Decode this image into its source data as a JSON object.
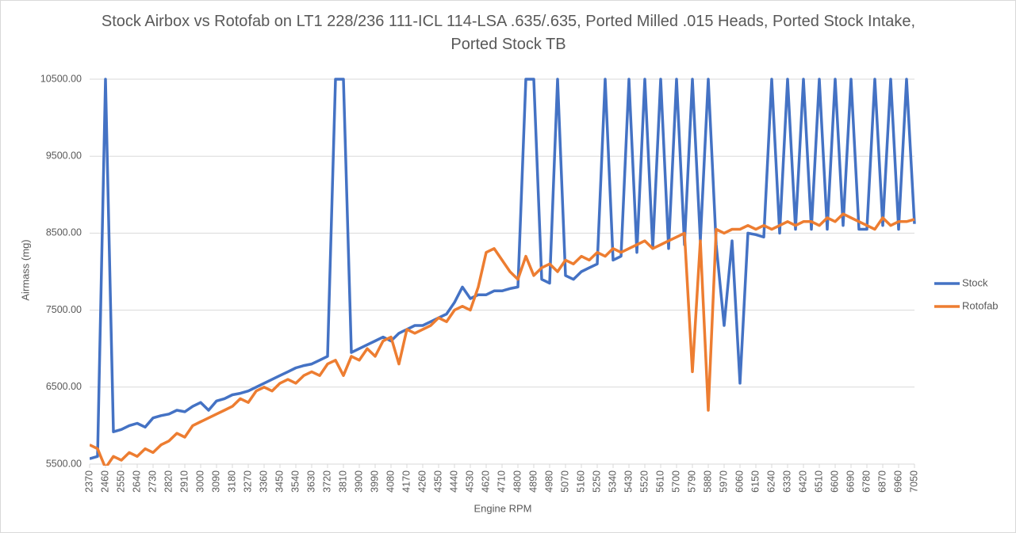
{
  "chart_data": {
    "type": "line",
    "title": "Stock Airbox vs Rotofab on LT1 228/236 111-ICL 114-LSA .635/.635, Ported Milled .015 Heads, Ported Stock Intake, Ported Stock TB",
    "x_label": "Engine RPM",
    "y_label": "Airmass (mg)",
    "x": [
      2370,
      2415,
      2460,
      2505,
      2550,
      2595,
      2640,
      2685,
      2730,
      2775,
      2820,
      2865,
      2910,
      2955,
      3000,
      3045,
      3090,
      3135,
      3180,
      3225,
      3270,
      3315,
      3360,
      3405,
      3450,
      3495,
      3540,
      3585,
      3630,
      3675,
      3720,
      3765,
      3810,
      3855,
      3900,
      3945,
      3990,
      4035,
      4080,
      4125,
      4170,
      4215,
      4260,
      4305,
      4350,
      4395,
      4440,
      4485,
      4530,
      4575,
      4620,
      4665,
      4710,
      4755,
      4800,
      4845,
      4890,
      4935,
      4980,
      5025,
      5070,
      5115,
      5160,
      5205,
      5250,
      5295,
      5340,
      5385,
      5430,
      5475,
      5520,
      5565,
      5610,
      5655,
      5700,
      5745,
      5790,
      5835,
      5880,
      5925,
      5970,
      6015,
      6060,
      6105,
      6150,
      6195,
      6240,
      6285,
      6330,
      6375,
      6420,
      6465,
      6510,
      6555,
      6600,
      6645,
      6690,
      6735,
      6780,
      6825,
      6870,
      6915,
      6960,
      7005,
      7050
    ],
    "series": [
      {
        "name": "Stock",
        "color": "#4472c4",
        "values": [
          5570,
          5600,
          10500,
          5920,
          5950,
          6000,
          6030,
          5980,
          6100,
          6130,
          6150,
          6200,
          6180,
          6250,
          6300,
          6200,
          6320,
          6350,
          6400,
          6420,
          6450,
          6500,
          6550,
          6600,
          6650,
          6700,
          6750,
          6780,
          6800,
          6850,
          6900,
          10500,
          10500,
          6950,
          7000,
          7050,
          7100,
          7150,
          7100,
          7200,
          7250,
          7300,
          7300,
          7350,
          7400,
          7450,
          7600,
          7800,
          7650,
          7700,
          7700,
          7750,
          7750,
          7780,
          7800,
          10500,
          10500,
          7900,
          7850,
          10500,
          7950,
          7900,
          8000,
          8050,
          8100,
          10500,
          8150,
          8200,
          10500,
          8250,
          10500,
          8300,
          10500,
          8300,
          10500,
          8350,
          10500,
          8400,
          10500,
          8350,
          7300,
          8400,
          6550,
          8500,
          8480,
          8450,
          10500,
          8500,
          10500,
          8550,
          10500,
          8550,
          10500,
          8550,
          10500,
          8600,
          10500,
          8550,
          8550,
          10500,
          8600,
          10500,
          8550,
          10500,
          8620
        ]
      },
      {
        "name": "Rotofab",
        "color": "#ed7d31",
        "values": [
          5750,
          5700,
          5450,
          5600,
          5550,
          5650,
          5600,
          5700,
          5650,
          5750,
          5800,
          5900,
          5850,
          6000,
          6050,
          6100,
          6150,
          6200,
          6250,
          6350,
          6300,
          6450,
          6500,
          6450,
          6550,
          6600,
          6550,
          6650,
          6700,
          6650,
          6800,
          6850,
          6650,
          6900,
          6850,
          7000,
          6900,
          7100,
          7150,
          6800,
          7250,
          7200,
          7250,
          7300,
          7400,
          7350,
          7500,
          7550,
          7500,
          7800,
          8250,
          8300,
          8150,
          8000,
          7900,
          8200,
          7950,
          8050,
          8100,
          8000,
          8150,
          8100,
          8200,
          8150,
          8250,
          8200,
          8300,
          8250,
          8300,
          8350,
          8400,
          8300,
          8350,
          8400,
          8450,
          8500,
          6700,
          8400,
          6200,
          8550,
          8500,
          8550,
          8550,
          8600,
          8550,
          8600,
          8550,
          8600,
          8650,
          8600,
          8650,
          8650,
          8600,
          8700,
          8650,
          8750,
          8700,
          8650,
          8600,
          8550,
          8700,
          8600,
          8650,
          8650,
          8680
        ]
      }
    ],
    "xlim": [
      2370,
      7050
    ],
    "xticks": [
      2370,
      2460,
      2550,
      2640,
      2730,
      2820,
      2910,
      3000,
      3090,
      3180,
      3270,
      3360,
      3450,
      3540,
      3630,
      3720,
      3810,
      3900,
      3990,
      4080,
      4170,
      4260,
      4350,
      4440,
      4530,
      4620,
      4710,
      4800,
      4890,
      4980,
      5070,
      5160,
      5250,
      5340,
      5430,
      5520,
      5610,
      5700,
      5790,
      5880,
      5970,
      6060,
      6150,
      6240,
      6330,
      6420,
      6510,
      6600,
      6690,
      6780,
      6870,
      6960,
      7050
    ],
    "ylim": [
      5500,
      10500
    ],
    "yticks": [
      {
        "value": 5500,
        "label": "5500.00"
      },
      {
        "value": 6500,
        "label": "6500.00"
      },
      {
        "value": 7500,
        "label": "7500.00"
      },
      {
        "value": 8500,
        "label": "8500.00"
      },
      {
        "value": 9500,
        "label": "9500.00"
      },
      {
        "value": 10500,
        "label": "10500.00"
      }
    ],
    "grid": true,
    "legend_position": "right"
  }
}
